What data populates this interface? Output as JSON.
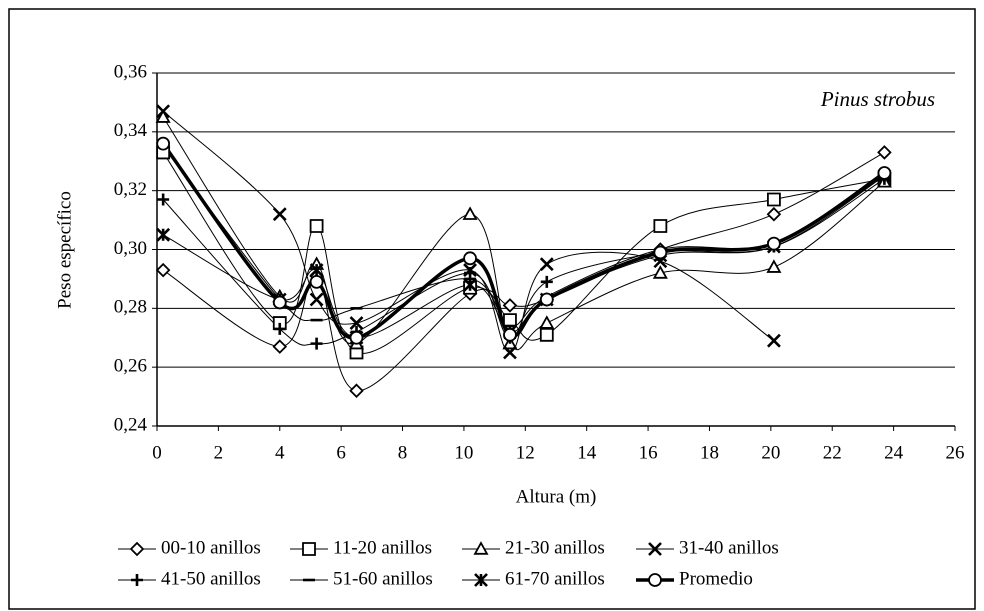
{
  "chart_data": {
    "type": "line",
    "annotation": "Pinus strobus",
    "x_label": "Altura (m)",
    "y_label": "Peso específico",
    "x": [
      0.2,
      4,
      5.2,
      6.5,
      10.2,
      11.5,
      12.7,
      16.4,
      20.1,
      23.7
    ],
    "series": [
      {
        "name": "00-10 anillos",
        "color": "#000000",
        "marker": "diamond",
        "width": 1,
        "values": [
          0.293,
          0.267,
          0.291,
          0.252,
          0.285,
          0.281,
          0.283,
          0.3,
          0.312,
          0.333
        ]
      },
      {
        "name": "11-20 anillos",
        "color": "#000000",
        "marker": "square",
        "width": 1,
        "values": [
          0.333,
          0.275,
          0.308,
          0.265,
          0.287,
          0.276,
          0.271,
          0.308,
          0.317,
          0.324
        ]
      },
      {
        "name": "21-30 anillos",
        "color": "#000000",
        "marker": "triangle",
        "width": 1,
        "values": [
          0.345,
          0.284,
          0.295,
          0.268,
          0.312,
          0.268,
          0.275,
          0.292,
          0.294,
          0.323
        ]
      },
      {
        "name": "31-40 anillos",
        "color": "#000000",
        "marker": "x",
        "width": 1,
        "values": [
          0.347,
          0.312,
          0.283,
          0.275,
          0.293,
          0.265,
          0.295,
          0.296,
          0.269,
          null
        ]
      },
      {
        "name": "41-50 anillos",
        "color": "#000000",
        "marker": "plus",
        "width": 1,
        "values": [
          0.317,
          0.273,
          0.268,
          0.272,
          0.292,
          0.27,
          0.289,
          0.299,
          0.301,
          0.324
        ]
      },
      {
        "name": "51-60 anillos",
        "color": "#000000",
        "marker": "dash",
        "width": 1,
        "values": [
          0.335,
          0.283,
          0.276,
          0.28,
          0.29,
          0.274,
          0.284,
          0.3,
          0.302,
          0.325
        ]
      },
      {
        "name": "61-70 anillos",
        "color": "#000000",
        "marker": "asterisk",
        "width": 1,
        "values": [
          0.305,
          0.283,
          0.293,
          0.27,
          0.288,
          0.272,
          0.283,
          0.298,
          0.301,
          0.325
        ]
      },
      {
        "name": "Promedio",
        "color": "#000000",
        "marker": "circle",
        "width": 3.5,
        "values": [
          0.336,
          0.282,
          0.289,
          0.27,
          0.297,
          0.271,
          0.283,
          0.299,
          0.302,
          0.326
        ]
      }
    ],
    "xlim": [
      0,
      26
    ],
    "xticks": [
      0,
      2,
      4,
      6,
      8,
      10,
      12,
      14,
      16,
      18,
      20,
      22,
      24,
      26
    ],
    "ylim": [
      0.24,
      0.36
    ],
    "yticks": [
      {
        "value": 0.24,
        "label": "0,24"
      },
      {
        "value": 0.26,
        "label": "0,26"
      },
      {
        "value": 0.28,
        "label": "0,28"
      },
      {
        "value": 0.3,
        "label": "0,30"
      },
      {
        "value": 0.32,
        "label": "0,32"
      },
      {
        "value": 0.34,
        "label": "0,34"
      },
      {
        "value": 0.36,
        "label": "0,36"
      }
    ],
    "grid": true
  }
}
